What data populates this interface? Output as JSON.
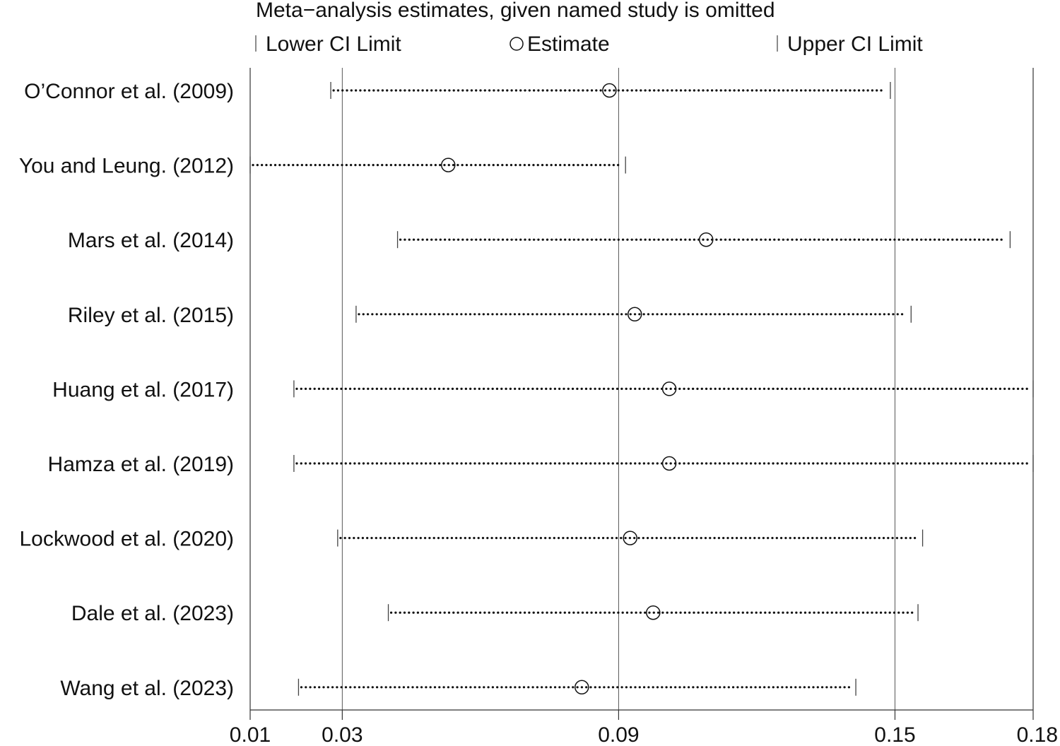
{
  "chart_data": {
    "type": "scatter",
    "title": "Meta−analysis estimates, given named study is omitted",
    "legend": {
      "placement": "top",
      "items": [
        {
          "key": "lower",
          "label": "Lower CI Limit"
        },
        {
          "key": "estimate",
          "label": "Estimate"
        },
        {
          "key": "upper",
          "label": "Upper CI Limit"
        }
      ]
    },
    "xlim": [
      0.01,
      0.18
    ],
    "xticks": [
      {
        "value": 0.01,
        "label": "0.01"
      },
      {
        "value": 0.03,
        "label": "0.03"
      },
      {
        "value": 0.09,
        "label": "0.09"
      },
      {
        "value": 0.15,
        "label": "0.15"
      },
      {
        "value": 0.18,
        "label": "0.18"
      }
    ],
    "gridlines_at": [
      0.03,
      0.09,
      0.15
    ],
    "studies": [
      {
        "name": "O’Connor et al. (2009)",
        "lower": 0.0275,
        "estimate": 0.088,
        "upper": 0.149
      },
      {
        "name": "You and Leung. (2012)",
        "lower": 0.01,
        "estimate": 0.053,
        "upper": 0.0915
      },
      {
        "name": "Mars  et al. (2014)",
        "lower": 0.042,
        "estimate": 0.109,
        "upper": 0.175
      },
      {
        "name": "Riley et al. (2015)",
        "lower": 0.033,
        "estimate": 0.0935,
        "upper": 0.1535
      },
      {
        "name": "Huang et al. (2017)",
        "lower": 0.0195,
        "estimate": 0.101,
        "upper": 0.18
      },
      {
        "name": "Hamza et al. (2019)",
        "lower": 0.0195,
        "estimate": 0.101,
        "upper": 0.18
      },
      {
        "name": "Lockwood et al. (2020)",
        "lower": 0.029,
        "estimate": 0.0925,
        "upper": 0.156
      },
      {
        "name": "Dale et al. (2023)",
        "lower": 0.04,
        "estimate": 0.0975,
        "upper": 0.155
      },
      {
        "name": "Wang et al. (2023)",
        "lower": 0.0205,
        "estimate": 0.082,
        "upper": 0.1415
      }
    ]
  }
}
